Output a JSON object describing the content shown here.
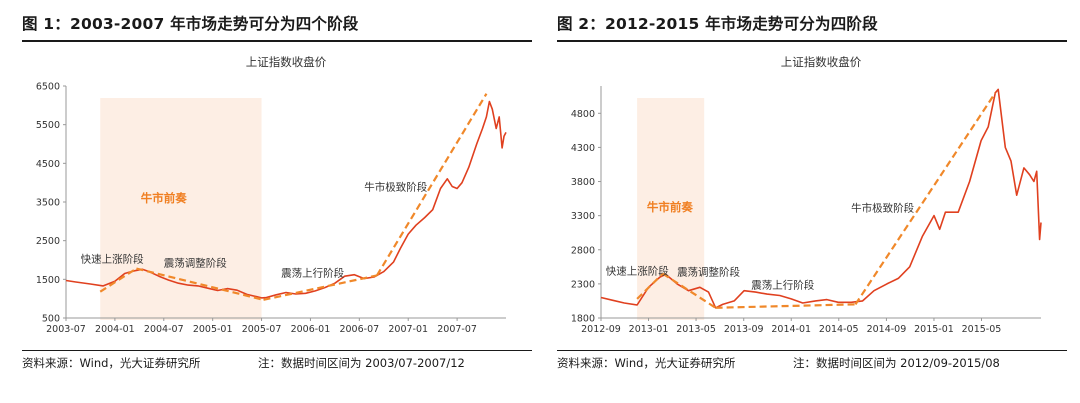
{
  "figures": [
    {
      "title": "图 1：2003-2007 年市场走势可分为四个阶段",
      "source": "资料来源：Wind，光大证券研究所",
      "note": "注：数据时间区间为 2003/07-2007/12"
    },
    {
      "title": "图 2：2012-2015 年市场走势可分为四阶段",
      "source": "资料来源：Wind，光大证券研究所",
      "note": "注：数据时间区间为 2012/09-2015/08"
    }
  ],
  "colors": {
    "line": "#e0401f",
    "trend": "#f0882a",
    "shade": "#fdeee4",
    "label": "#f07f22",
    "axis": "#999999",
    "text": "#333333"
  },
  "chart_data": [
    {
      "type": "line",
      "title": "上证指数收盘价",
      "series_name": "上证指数收盘价",
      "ylim": [
        500,
        6500
      ],
      "yticks": [
        500,
        1500,
        2500,
        3500,
        4500,
        5500,
        6500
      ],
      "xlim": [
        2003.5,
        2008.0
      ],
      "xticks": [
        {
          "v": 2003.5,
          "label": "2003-07"
        },
        {
          "v": 2004.0,
          "label": "2004-01"
        },
        {
          "v": 2004.5,
          "label": "2004-07"
        },
        {
          "v": 2005.0,
          "label": "2005-01"
        },
        {
          "v": 2005.5,
          "label": "2005-07"
        },
        {
          "v": 2006.0,
          "label": "2006-01"
        },
        {
          "v": 2006.5,
          "label": "2006-07"
        },
        {
          "v": 2007.0,
          "label": "2007-01"
        },
        {
          "v": 2007.5,
          "label": "2007-07"
        }
      ],
      "series": [
        [
          2003.5,
          1470
        ],
        [
          2003.6,
          1430
        ],
        [
          2003.75,
          1380
        ],
        [
          2003.88,
          1330
        ],
        [
          2004.0,
          1450
        ],
        [
          2004.1,
          1650
        ],
        [
          2004.2,
          1720
        ],
        [
          2004.28,
          1760
        ],
        [
          2004.35,
          1700
        ],
        [
          2004.45,
          1580
        ],
        [
          2004.55,
          1480
        ],
        [
          2004.65,
          1400
        ],
        [
          2004.75,
          1350
        ],
        [
          2004.85,
          1330
        ],
        [
          2004.95,
          1270
        ],
        [
          2005.05,
          1210
        ],
        [
          2005.15,
          1260
        ],
        [
          2005.25,
          1220
        ],
        [
          2005.35,
          1110
        ],
        [
          2005.45,
          1050
        ],
        [
          2005.5,
          1020
        ],
        [
          2005.55,
          1030
        ],
        [
          2005.65,
          1100
        ],
        [
          2005.75,
          1160
        ],
        [
          2005.85,
          1120
        ],
        [
          2005.95,
          1140
        ],
        [
          2006.05,
          1200
        ],
        [
          2006.15,
          1290
        ],
        [
          2006.25,
          1400
        ],
        [
          2006.35,
          1580
        ],
        [
          2006.45,
          1620
        ],
        [
          2006.55,
          1520
        ],
        [
          2006.65,
          1560
        ],
        [
          2006.75,
          1700
        ],
        [
          2006.85,
          1950
        ],
        [
          2006.92,
          2300
        ],
        [
          2007.0,
          2670
        ],
        [
          2007.08,
          2900
        ],
        [
          2007.17,
          3100
        ],
        [
          2007.25,
          3300
        ],
        [
          2007.33,
          3850
        ],
        [
          2007.4,
          4100
        ],
        [
          2007.45,
          3900
        ],
        [
          2007.5,
          3850
        ],
        [
          2007.55,
          4000
        ],
        [
          2007.62,
          4400
        ],
        [
          2007.7,
          5000
        ],
        [
          2007.76,
          5400
        ],
        [
          2007.8,
          5700
        ],
        [
          2007.83,
          6100
        ],
        [
          2007.86,
          5900
        ],
        [
          2007.9,
          5400
        ],
        [
          2007.93,
          5700
        ],
        [
          2007.96,
          4900
        ],
        [
          2007.98,
          5200
        ],
        [
          2008.0,
          5300
        ]
      ],
      "shade": {
        "x0": 2003.85,
        "x1": 2005.5
      },
      "trend_lines": [
        [
          [
            2003.85,
            1180
          ],
          [
            2004.22,
            1780
          ]
        ],
        [
          [
            2004.22,
            1780
          ],
          [
            2005.52,
            970
          ]
        ],
        [
          [
            2005.52,
            970
          ],
          [
            2006.68,
            1600
          ]
        ],
        [
          [
            2006.68,
            1600
          ],
          [
            2007.8,
            6300
          ]
        ]
      ],
      "annotations": [
        {
          "text": "快速上涨阶段",
          "x": 2003.65,
          "y": 1930,
          "color": "text"
        },
        {
          "text": "震荡调整阶段",
          "x": 2004.5,
          "y": 1830,
          "color": "text"
        },
        {
          "text": "震荡上行阶段",
          "x": 2005.7,
          "y": 1570,
          "color": "text"
        },
        {
          "text": "牛市极致阶段",
          "x": 2006.55,
          "y": 3800,
          "color": "text"
        },
        {
          "text": "牛市前奏",
          "x": 2004.5,
          "y": 3500,
          "color": "label"
        }
      ]
    },
    {
      "type": "line",
      "title": "上证指数收盘价",
      "series_name": "上证指数收盘价",
      "ylim": [
        1800,
        5200
      ],
      "yticks": [
        1800,
        2300,
        2800,
        3300,
        3800,
        4300,
        4800
      ],
      "xlim": [
        2012.667,
        2015.75
      ],
      "xticks": [
        {
          "v": 2012.667,
          "label": "2012-09"
        },
        {
          "v": 2013.0,
          "label": "2013-01"
        },
        {
          "v": 2013.333,
          "label": "2013-05"
        },
        {
          "v": 2013.667,
          "label": "2013-09"
        },
        {
          "v": 2014.0,
          "label": "2014-01"
        },
        {
          "v": 2014.333,
          "label": "2014-05"
        },
        {
          "v": 2014.667,
          "label": "2014-09"
        },
        {
          "v": 2015.0,
          "label": "2015-01"
        },
        {
          "v": 2015.333,
          "label": "2015-05"
        }
      ],
      "series": [
        [
          2012.667,
          2100
        ],
        [
          2012.75,
          2060
        ],
        [
          2012.83,
          2020
        ],
        [
          2012.92,
          1990
        ],
        [
          2013.0,
          2250
        ],
        [
          2013.08,
          2400
        ],
        [
          2013.12,
          2440
        ],
        [
          2013.2,
          2300
        ],
        [
          2013.28,
          2200
        ],
        [
          2013.36,
          2250
        ],
        [
          2013.42,
          2180
        ],
        [
          2013.47,
          1950
        ],
        [
          2013.52,
          2000
        ],
        [
          2013.6,
          2050
        ],
        [
          2013.67,
          2200
        ],
        [
          2013.75,
          2180
        ],
        [
          2013.83,
          2150
        ],
        [
          2013.92,
          2130
        ],
        [
          2014.0,
          2080
        ],
        [
          2014.08,
          2020
        ],
        [
          2014.17,
          2050
        ],
        [
          2014.25,
          2070
        ],
        [
          2014.33,
          2030
        ],
        [
          2014.42,
          2030
        ],
        [
          2014.5,
          2050
        ],
        [
          2014.58,
          2200
        ],
        [
          2014.67,
          2300
        ],
        [
          2014.75,
          2380
        ],
        [
          2014.83,
          2550
        ],
        [
          2014.92,
          3000
        ],
        [
          2015.0,
          3300
        ],
        [
          2015.04,
          3100
        ],
        [
          2015.08,
          3350
        ],
        [
          2015.17,
          3350
        ],
        [
          2015.25,
          3800
        ],
        [
          2015.33,
          4400
        ],
        [
          2015.38,
          4600
        ],
        [
          2015.43,
          5100
        ],
        [
          2015.45,
          5150
        ],
        [
          2015.5,
          4300
        ],
        [
          2015.54,
          4100
        ],
        [
          2015.58,
          3600
        ],
        [
          2015.63,
          4000
        ],
        [
          2015.67,
          3900
        ],
        [
          2015.7,
          3800
        ],
        [
          2015.72,
          3950
        ],
        [
          2015.74,
          2950
        ],
        [
          2015.75,
          3200
        ]
      ],
      "shade": {
        "x0": 2012.92,
        "x1": 2013.39
      },
      "trend_lines": [
        [
          [
            2012.92,
            2080
          ],
          [
            2013.1,
            2450
          ]
        ],
        [
          [
            2013.1,
            2450
          ],
          [
            2013.47,
            1950
          ]
        ],
        [
          [
            2013.47,
            1950
          ],
          [
            2014.45,
            2000
          ]
        ],
        [
          [
            2014.45,
            2000
          ],
          [
            2015.43,
            5100
          ]
        ]
      ],
      "annotations": [
        {
          "text": "快速上涨阶段",
          "x": 2012.7,
          "y": 2440,
          "color": "text"
        },
        {
          "text": "震荡调整阶段",
          "x": 2013.2,
          "y": 2420,
          "color": "text"
        },
        {
          "text": "震荡上行阶段",
          "x": 2013.72,
          "y": 2230,
          "color": "text"
        },
        {
          "text": "牛市极致阶段",
          "x": 2014.42,
          "y": 3360,
          "color": "text"
        },
        {
          "text": "牛市前奏",
          "x": 2013.15,
          "y": 3370,
          "color": "label"
        }
      ]
    }
  ]
}
